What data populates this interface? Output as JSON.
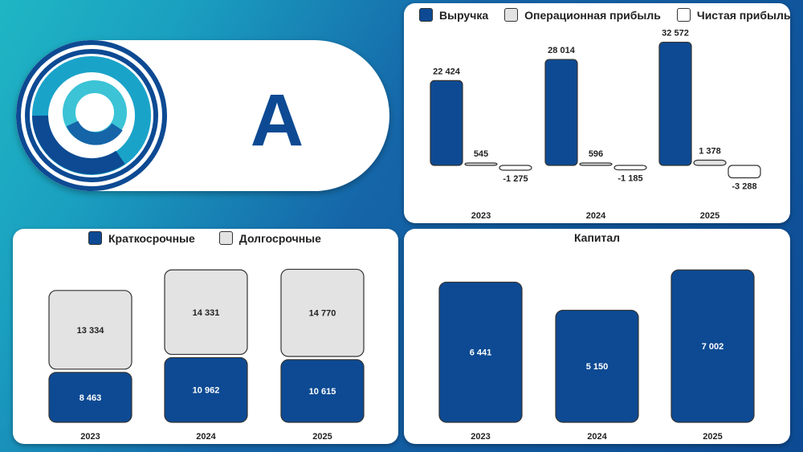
{
  "brand": {
    "letter": "A",
    "logo_icon": "concentric-rings-logo-icon"
  },
  "colors": {
    "navy": "#0d4a93",
    "grey": "#e3e3e3",
    "white": "#ffffff",
    "outline": "#333333"
  },
  "chart_data": [
    {
      "type": "bar",
      "categories": [
        "2023",
        "2024",
        "2025"
      ],
      "series": [
        {
          "name": "Выручка",
          "values": [
            22424,
            28014,
            32572
          ],
          "labels": [
            "22 424",
            "28 014",
            "32 572"
          ],
          "color": "#0d4a93"
        },
        {
          "name": "Операционная прибыль",
          "values": [
            545,
            596,
            1378
          ],
          "labels": [
            "545",
            "596",
            "1 378"
          ],
          "color": "#e3e3e3"
        },
        {
          "name": "Чистая прибыль",
          "values": [
            -1275,
            -1185,
            -3288
          ],
          "labels": [
            "-1 275",
            "-1 185",
            "-3 288"
          ],
          "color": "#ffffff"
        }
      ],
      "legend": "top"
    },
    {
      "type": "bar",
      "stacked": true,
      "categories": [
        "2023",
        "2024",
        "2025"
      ],
      "series": [
        {
          "name": "Краткосрочные",
          "values": [
            8463,
            10962,
            10615
          ],
          "labels": [
            "8 463",
            "10 962",
            "10 615"
          ],
          "color": "#0d4a93"
        },
        {
          "name": "Долгосрочные",
          "values": [
            13334,
            14331,
            14770
          ],
          "labels": [
            "13 334",
            "14 331",
            "14 770"
          ],
          "color": "#e3e3e3"
        }
      ],
      "legend": "top"
    },
    {
      "type": "bar",
      "title": "Капитал",
      "categories": [
        "2023",
        "2024",
        "2025"
      ],
      "values": [
        6441,
        5150,
        7002
      ],
      "labels": [
        "6 441",
        "5 150",
        "7 002"
      ],
      "color": "#0d4a93"
    }
  ]
}
